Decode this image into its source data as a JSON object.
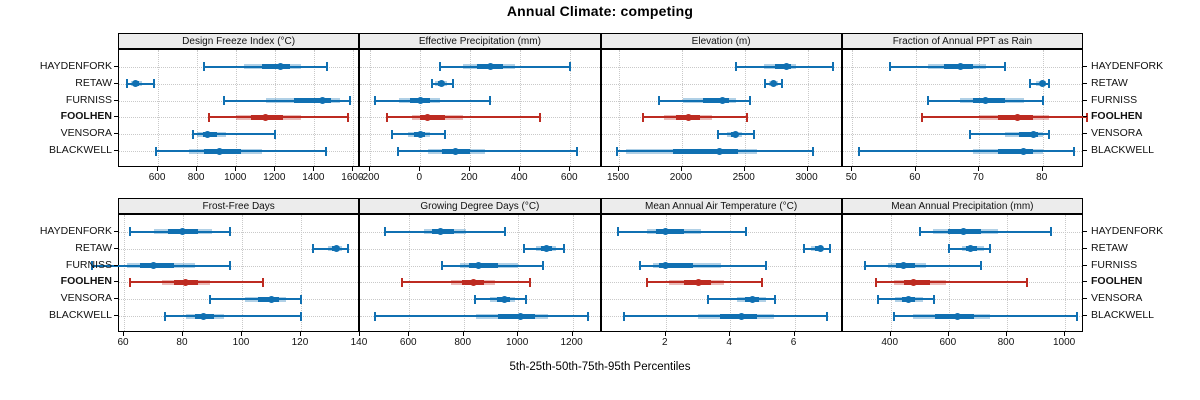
{
  "title": "Annual Climate: competing",
  "footer": "5th-25th-50th-75th-95th Percentiles",
  "sites": [
    "HAYDENFORK",
    "RETAW",
    "FURNISS",
    "FOOLHEN",
    "VENSORA",
    "BLACKWELL"
  ],
  "highlight_site": "FOOLHEN",
  "legend_note": "percentiles per site: [p5, p25, p50, p75, p95]",
  "colors": {
    "series_normal": "#1070b2",
    "series_normal_band": "rgba(16,112,178,0.33)",
    "series_highlight": "#bd2b21",
    "series_highlight_band": "rgba(189,43,33,0.33)",
    "strip_background": "#ececec",
    "panel_border": "#000000",
    "gridline": "#c9c9c9"
  },
  "chart_data": [
    {
      "type": "interval",
      "row": 0,
      "col": 0,
      "title": "Design Freeze Index (°C)",
      "ticks": [
        600,
        800,
        1000,
        1200,
        1400,
        1600
      ],
      "xlim": [
        400,
        1635
      ],
      "series": [
        {
          "site": "HAYDENFORK",
          "percentiles": [
            835,
            1040,
            1225,
            1330,
            1465
          ]
        },
        {
          "site": "RETAW",
          "percentiles": [
            440,
            460,
            485,
            520,
            580
          ]
        },
        {
          "site": "FURNISS",
          "percentiles": [
            940,
            1150,
            1440,
            1530,
            1580
          ]
        },
        {
          "site": "FOOLHEN",
          "percentiles": [
            860,
            1000,
            1150,
            1330,
            1570
          ]
        },
        {
          "site": "VENSORA",
          "percentiles": [
            780,
            800,
            855,
            950,
            1200
          ]
        },
        {
          "site": "BLACKWELL",
          "percentiles": [
            590,
            760,
            915,
            1130,
            1460
          ]
        }
      ]
    },
    {
      "type": "interval",
      "row": 0,
      "col": 1,
      "title": "Effective Precipitation (mm)",
      "ticks": [
        -200,
        0,
        200,
        400,
        600
      ],
      "xlim": [
        -240,
        725
      ],
      "series": [
        {
          "site": "HAYDENFORK",
          "percentiles": [
            80,
            170,
            280,
            380,
            600
          ]
        },
        {
          "site": "RETAW",
          "percentiles": [
            45,
            60,
            85,
            105,
            130
          ]
        },
        {
          "site": "FURNISS",
          "percentiles": [
            -180,
            -85,
            0,
            80,
            280
          ]
        },
        {
          "site": "FOOLHEN",
          "percentiles": [
            -135,
            -35,
            30,
            170,
            480
          ]
        },
        {
          "site": "VENSORA",
          "percentiles": [
            -115,
            -50,
            0,
            40,
            100
          ]
        },
        {
          "site": "BLACKWELL",
          "percentiles": [
            -90,
            30,
            140,
            260,
            625
          ]
        }
      ]
    },
    {
      "type": "interval",
      "row": 0,
      "col": 2,
      "title": "Elevation (m)",
      "ticks": [
        1500,
        2000,
        2500,
        3000
      ],
      "xlim": [
        1360,
        3280
      ],
      "series": [
        {
          "site": "HAYDENFORK",
          "percentiles": [
            2430,
            2650,
            2830,
            2905,
            3200
          ]
        },
        {
          "site": "RETAW",
          "percentiles": [
            2660,
            2690,
            2725,
            2765,
            2800
          ]
        },
        {
          "site": "FURNISS",
          "percentiles": [
            1820,
            2010,
            2320,
            2430,
            2540
          ]
        },
        {
          "site": "FOOLHEN",
          "percentiles": [
            1690,
            1860,
            2050,
            2240,
            2520
          ]
        },
        {
          "site": "VENSORA",
          "percentiles": [
            2290,
            2360,
            2425,
            2475,
            2570
          ]
        },
        {
          "site": "BLACKWELL",
          "percentiles": [
            1480,
            1555,
            2300,
            2600,
            3040
          ]
        }
      ]
    },
    {
      "type": "interval",
      "row": 0,
      "col": 3,
      "title": "Fraction of Annual PPT as Rain",
      "ticks": [
        50,
        60,
        70,
        80
      ],
      "xlim": [
        48.5,
        86.5
      ],
      "series": [
        {
          "site": "HAYDENFORK",
          "percentiles": [
            56,
            62,
            67,
            71,
            74
          ]
        },
        {
          "site": "RETAW",
          "percentiles": [
            78,
            79,
            80,
            80.5,
            81
          ]
        },
        {
          "site": "FURNISS",
          "percentiles": [
            62,
            67,
            71,
            77,
            80
          ]
        },
        {
          "site": "FOOLHEN",
          "percentiles": [
            61,
            70,
            76,
            81,
            87
          ]
        },
        {
          "site": "VENSORA",
          "percentiles": [
            68.5,
            74,
            78.5,
            80,
            81
          ]
        },
        {
          "site": "BLACKWELL",
          "percentiles": [
            51,
            69,
            77,
            80,
            85
          ]
        }
      ]
    },
    {
      "type": "interval",
      "row": 1,
      "col": 0,
      "title": "Frost-Free Days",
      "ticks": [
        60,
        80,
        100,
        120,
        140
      ],
      "xlim": [
        58.3,
        140.1
      ],
      "series": [
        {
          "site": "HAYDENFORK",
          "percentiles": [
            62,
            70,
            80,
            90,
            96
          ]
        },
        {
          "site": "RETAW",
          "percentiles": [
            124,
            129,
            132,
            134,
            136
          ]
        },
        {
          "site": "FURNISS",
          "percentiles": [
            49,
            61,
            70,
            84,
            96
          ]
        },
        {
          "site": "FOOLHEN",
          "percentiles": [
            62,
            73,
            81,
            89,
            107
          ]
        },
        {
          "site": "VENSORA",
          "percentiles": [
            89,
            101,
            110,
            115,
            120
          ]
        },
        {
          "site": "BLACKWELL",
          "percentiles": [
            74,
            81,
            87,
            94,
            120
          ]
        }
      ]
    },
    {
      "type": "interval",
      "row": 1,
      "col": 1,
      "title": "Growing Degree Days (°C)",
      "ticks": [
        600,
        800,
        1000,
        1200
      ],
      "xlim": [
        420,
        1306
      ],
      "series": [
        {
          "site": "HAYDENFORK",
          "percentiles": [
            510,
            655,
            715,
            810,
            950
          ]
        },
        {
          "site": "RETAW",
          "percentiles": [
            1020,
            1065,
            1105,
            1140,
            1170
          ]
        },
        {
          "site": "FURNISS",
          "percentiles": [
            720,
            785,
            855,
            1000,
            1090
          ]
        },
        {
          "site": "FOOLHEN",
          "percentiles": [
            575,
            755,
            835,
            915,
            1045
          ]
        },
        {
          "site": "VENSORA",
          "percentiles": [
            840,
            895,
            950,
            990,
            1030
          ]
        },
        {
          "site": "BLACKWELL",
          "percentiles": [
            475,
            845,
            1010,
            1110,
            1255
          ]
        }
      ]
    },
    {
      "type": "interval",
      "row": 1,
      "col": 2,
      "title": "Mean Annual Air Temperature (°C)",
      "ticks": [
        2,
        4,
        6
      ],
      "xlim": [
        0,
        7.5
      ],
      "series": [
        {
          "site": "HAYDENFORK",
          "percentiles": [
            0.5,
            1.4,
            2.0,
            3.1,
            4.5
          ]
        },
        {
          "site": "RETAW",
          "percentiles": [
            6.3,
            6.5,
            6.8,
            6.9,
            7.1
          ]
        },
        {
          "site": "FURNISS",
          "percentiles": [
            1.2,
            1.6,
            2.0,
            3.7,
            5.1
          ]
        },
        {
          "site": "FOOLHEN",
          "percentiles": [
            1.4,
            2.1,
            3.0,
            3.8,
            5.0
          ]
        },
        {
          "site": "VENSORA",
          "percentiles": [
            3.3,
            4.2,
            4.7,
            5.1,
            5.4
          ]
        },
        {
          "site": "BLACKWELL",
          "percentiles": [
            0.7,
            3.0,
            4.35,
            5.35,
            7.0
          ]
        }
      ]
    },
    {
      "type": "interval",
      "row": 1,
      "col": 3,
      "title": "Mean Annual Precipitation (mm)",
      "ticks": [
        400,
        600,
        800,
        1000
      ],
      "xlim": [
        235,
        1065
      ],
      "series": [
        {
          "site": "HAYDENFORK",
          "percentiles": [
            500,
            545,
            650,
            770,
            950
          ]
        },
        {
          "site": "RETAW",
          "percentiles": [
            600,
            645,
            675,
            720,
            740
          ]
        },
        {
          "site": "FURNISS",
          "percentiles": [
            310,
            390,
            445,
            520,
            710
          ]
        },
        {
          "site": "FOOLHEN",
          "percentiles": [
            350,
            410,
            480,
            590,
            870
          ]
        },
        {
          "site": "VENSORA",
          "percentiles": [
            355,
            415,
            460,
            510,
            550
          ]
        },
        {
          "site": "BLACKWELL",
          "percentiles": [
            410,
            475,
            630,
            740,
            1040
          ]
        }
      ]
    }
  ]
}
